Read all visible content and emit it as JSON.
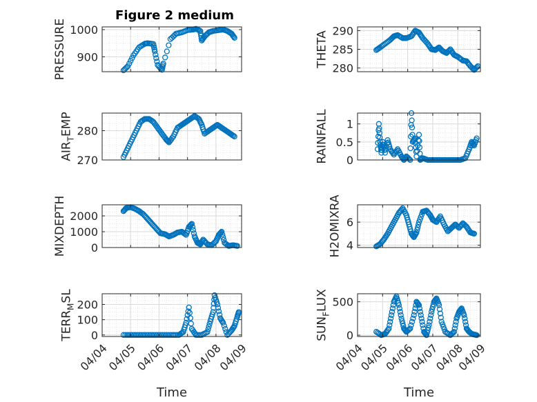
{
  "figure_title": "Figure 2 medium",
  "colors": {
    "marker": "#0072BD",
    "grid": "#d9d9d9",
    "axis": "#262626"
  },
  "chart_data": [
    {
      "type": "scatter",
      "ylabel": "PRESSURE",
      "xlabel": "",
      "ylim": [
        845,
        1010
      ],
      "yticks": [
        900,
        1000
      ],
      "ytick_labels": [
        "900",
        "1000"
      ],
      "xlim": [
        0,
        4.9
      ],
      "xticks": [
        0,
        1,
        2,
        3,
        4,
        5
      ],
      "xtick_labels": [],
      "grid": true,
      "points": {
        "x": [
          0.75,
          0.9,
          1.1,
          1.3,
          1.5,
          1.6,
          1.8,
          1.85,
          1.95,
          2.1,
          2.15,
          2.4,
          2.6,
          2.8,
          3.0,
          3.2,
          3.3,
          3.45,
          3.5,
          3.6,
          3.75,
          3.9,
          4.1,
          4.25,
          4.4,
          4.55,
          4.65
        ],
        "y": [
          850,
          865,
          905,
          935,
          948,
          950,
          947,
          920,
          870,
          852,
          875,
          965,
          985,
          990,
          998,
          1000,
          1003,
          995,
          960,
          975,
          990,
          995,
          998,
          1000,
          995,
          985,
          970
        ]
      }
    },
    {
      "type": "scatter",
      "ylabel": "THETA",
      "xlabel": "",
      "ylim": [
        279,
        291
      ],
      "yticks": [
        280,
        285,
        290
      ],
      "ytick_labels": [
        "280",
        "285",
        "290"
      ],
      "xlim": [
        0,
        4.9
      ],
      "xticks": [
        0,
        1,
        2,
        3,
        4,
        5
      ],
      "xtick_labels": [],
      "grid": true,
      "points": {
        "x": [
          0.75,
          0.9,
          1.1,
          1.3,
          1.45,
          1.6,
          1.8,
          1.95,
          2.15,
          2.3,
          2.45,
          2.6,
          2.8,
          2.95,
          3.1,
          3.25,
          3.4,
          3.55,
          3.7,
          3.85,
          4.0,
          4.2,
          4.35,
          4.5,
          4.65,
          4.8
        ],
        "y": [
          284.8,
          285.5,
          286.5,
          287.5,
          288.5,
          288.8,
          288,
          288,
          288.5,
          290,
          289.5,
          288,
          286.5,
          285,
          284.8,
          285.5,
          284.5,
          284,
          285,
          283.5,
          283,
          282,
          281.8,
          280.5,
          279.5,
          280.5
        ]
      }
    },
    {
      "type": "scatter",
      "ylabel": "AIR_TEMP",
      "xlabel": "",
      "ylim": [
        270,
        286
      ],
      "yticks": [
        270,
        280
      ],
      "ytick_labels": [
        "270",
        "280"
      ],
      "xlim": [
        0,
        4.9
      ],
      "xticks": [
        0,
        1,
        2,
        3,
        4,
        5
      ],
      "xtick_labels": [],
      "grid": true,
      "points": {
        "x": [
          0.75,
          0.9,
          1.05,
          1.2,
          1.35,
          1.5,
          1.65,
          1.8,
          1.95,
          2.1,
          2.25,
          2.35,
          2.5,
          2.65,
          2.8,
          2.95,
          3.1,
          3.25,
          3.4,
          3.5,
          3.6,
          3.75,
          3.9,
          4.05,
          4.2,
          4.35,
          4.5,
          4.65
        ],
        "y": [
          271,
          274,
          277,
          280,
          283,
          284,
          284,
          283,
          281,
          279,
          277,
          276,
          278,
          281,
          282,
          283,
          284,
          285,
          284,
          282,
          279,
          280,
          281,
          282,
          281,
          280,
          279,
          278
        ]
      }
    },
    {
      "type": "scatter",
      "ylabel": "RAINFALL",
      "xlabel": "",
      "ylim": [
        0,
        1.3
      ],
      "yticks": [
        0,
        0.5,
        1
      ],
      "ytick_labels": [
        "0",
        "0.5",
        "1"
      ],
      "xlim": [
        0,
        4.9
      ],
      "xticks": [
        0,
        1,
        2,
        3,
        4,
        5
      ],
      "xtick_labels": [],
      "grid": true,
      "points": {
        "x": [
          0.8,
          0.85,
          0.9,
          0.95,
          1.0,
          1.1,
          1.2,
          1.3,
          1.45,
          1.6,
          1.75,
          1.85,
          1.95,
          2.1,
          2.15,
          2.2,
          2.3,
          2.35,
          2.45,
          2.5,
          2.6,
          2.8,
          2.95,
          3.1,
          3.3,
          3.5,
          3.7,
          3.9,
          4.1,
          4.3,
          4.45,
          4.55,
          4.65,
          4.75
        ],
        "y": [
          0.3,
          1.0,
          0.5,
          0.2,
          0.5,
          0.2,
          0.55,
          0.3,
          0.15,
          0.3,
          0.1,
          0,
          0.1,
          0,
          1.3,
          0.5,
          0.6,
          0.1,
          0.7,
          0,
          0.05,
          0,
          0,
          0,
          0,
          0,
          0,
          0,
          0,
          0.05,
          0.3,
          0.5,
          0.4,
          0.6
        ]
      }
    },
    {
      "type": "scatter",
      "ylabel": "MIXDEPTH",
      "xlabel": "",
      "ylim": [
        0,
        2700
      ],
      "yticks": [
        0,
        1000,
        2000
      ],
      "ytick_labels": [
        "0",
        "1000",
        "2000"
      ],
      "xlim": [
        0,
        4.9
      ],
      "xticks": [
        0,
        1,
        2,
        3,
        4,
        5
      ],
      "xtick_labels": [],
      "grid": true,
      "points": {
        "x": [
          0.75,
          0.85,
          1.0,
          1.15,
          1.3,
          1.45,
          1.6,
          1.75,
          1.9,
          2.05,
          2.2,
          2.35,
          2.5,
          2.65,
          2.8,
          2.95,
          3.05,
          3.15,
          3.25,
          3.35,
          3.45,
          3.55,
          3.7,
          3.85,
          4.0,
          4.1,
          4.2,
          4.3,
          4.45,
          4.6,
          4.75
        ],
        "y": [
          2300,
          2500,
          2550,
          2450,
          2300,
          2100,
          1800,
          1500,
          1200,
          900,
          850,
          700,
          800,
          950,
          1000,
          800,
          1300,
          1500,
          700,
          300,
          200,
          500,
          200,
          150,
          400,
          800,
          1000,
          300,
          100,
          150,
          100
        ]
      }
    },
    {
      "type": "scatter",
      "ylabel": "H2OMIXRA",
      "xlabel": "",
      "ylim": [
        3.8,
        7.5
      ],
      "yticks": [
        4,
        6
      ],
      "ytick_labels": [
        "4",
        "6"
      ],
      "xlim": [
        0,
        4.9
      ],
      "xticks": [
        0,
        1,
        2,
        3,
        4,
        5
      ],
      "xtick_labels": [],
      "grid": true,
      "points": {
        "x": [
          0.75,
          0.9,
          1.05,
          1.2,
          1.35,
          1.5,
          1.65,
          1.8,
          1.95,
          2.05,
          2.15,
          2.25,
          2.35,
          2.45,
          2.6,
          2.75,
          2.9,
          3.0,
          3.15,
          3.3,
          3.45,
          3.6,
          3.75,
          3.9,
          4.05,
          4.2,
          4.35,
          4.5,
          4.65
        ],
        "y": [
          3.9,
          4.1,
          4.5,
          5.0,
          5.6,
          6.2,
          6.8,
          7.2,
          6.6,
          5.8,
          5.0,
          4.7,
          5.1,
          6.0,
          6.9,
          7.0,
          6.6,
          6.2,
          6.0,
          6.5,
          5.8,
          5.2,
          5.5,
          5.8,
          5.5,
          5.9,
          5.6,
          5.1,
          5.0
        ]
      }
    },
    {
      "type": "scatter",
      "ylabel": "TERR_MSL",
      "xlabel": "Time",
      "ylim": [
        -10,
        270
      ],
      "yticks": [
        0,
        100,
        200
      ],
      "ytick_labels": [
        "0",
        "100",
        "200"
      ],
      "xlim": [
        0,
        4.9
      ],
      "xticks": [
        0,
        1,
        2,
        3,
        4,
        5
      ],
      "xtick_labels": [
        "04/04",
        "04/05",
        "04/06",
        "04/07",
        "04/08",
        "04/09"
      ],
      "grid": true,
      "points": {
        "x": [
          0.75,
          1.0,
          1.25,
          1.5,
          1.75,
          2.0,
          2.25,
          2.5,
          2.7,
          2.85,
          2.95,
          3.05,
          3.15,
          3.3,
          3.5,
          3.7,
          3.8,
          3.9,
          3.95,
          4.05,
          4.15,
          4.25,
          4.4,
          4.55,
          4.65,
          4.75,
          4.8
        ],
        "y": [
          0,
          0,
          0,
          0,
          0,
          0,
          0,
          0,
          0,
          20,
          80,
          180,
          40,
          0,
          0,
          20,
          90,
          150,
          260,
          200,
          110,
          80,
          0,
          30,
          60,
          120,
          150
        ]
      }
    },
    {
      "type": "scatter",
      "ylabel": "SUN_FLUX",
      "xlabel": "Time",
      "ylim": [
        -20,
        620
      ],
      "yticks": [
        0,
        500
      ],
      "ytick_labels": [
        "0",
        "500"
      ],
      "xlim": [
        0,
        4.9
      ],
      "xticks": [
        0,
        1,
        2,
        3,
        4,
        5
      ],
      "xtick_labels": [
        "04/04",
        "04/05",
        "04/06",
        "04/07",
        "04/08",
        "04/09"
      ],
      "grid": true,
      "points": {
        "x": [
          0.75,
          0.95,
          1.1,
          1.25,
          1.35,
          1.45,
          1.55,
          1.65,
          1.75,
          1.85,
          1.95,
          2.1,
          2.25,
          2.35,
          2.45,
          2.55,
          2.65,
          2.75,
          2.85,
          2.95,
          3.05,
          3.15,
          3.25,
          3.35,
          3.5,
          3.7,
          3.85,
          3.95,
          4.05,
          4.15,
          4.25,
          4.35,
          4.45,
          4.55,
          4.65,
          4.75
        ],
        "y": [
          50,
          0,
          20,
          100,
          300,
          500,
          580,
          450,
          250,
          100,
          50,
          100,
          300,
          500,
          450,
          250,
          50,
          0,
          150,
          350,
          500,
          550,
          450,
          200,
          50,
          0,
          50,
          250,
          350,
          400,
          300,
          100,
          50,
          20,
          10,
          0
        ]
      }
    }
  ]
}
